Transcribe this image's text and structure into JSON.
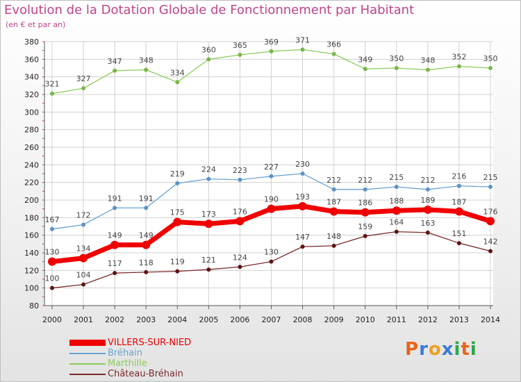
{
  "title": "Evolution de la Dotation Globale de Fonctionnement par Habitant",
  "subtitle": "(en € et par an)",
  "logo": {
    "text": "Proxiti",
    "colors": [
      "#e8641b",
      "#3a7bd5",
      "#f0a020",
      "#3a7bd5",
      "#2aa84a",
      "#e8641b",
      "#2aa84a"
    ]
  },
  "chart_data": {
    "type": "line",
    "x": [
      2000,
      2001,
      2002,
      2003,
      2004,
      2005,
      2006,
      2007,
      2008,
      2009,
      2010,
      2011,
      2012,
      2013,
      2014
    ],
    "ylim": [
      80,
      380
    ],
    "yticks": [
      80,
      100,
      120,
      140,
      160,
      180,
      200,
      220,
      240,
      260,
      280,
      300,
      320,
      340,
      360,
      380
    ],
    "grid": true,
    "legend_position": "bottom-left",
    "series": [
      {
        "name": "Marthille",
        "color": "#8ccc5a",
        "marker": "#7ab648",
        "width": 1.3,
        "radius": 3,
        "values": [
          321,
          327,
          347,
          348,
          334,
          360,
          365,
          369,
          371,
          366,
          349,
          350,
          348,
          352,
          350
        ]
      },
      {
        "name": "Bréhain",
        "color": "#6aa2d2",
        "marker": "#5b92c6",
        "width": 1.3,
        "radius": 3,
        "values": [
          167,
          172,
          191,
          191,
          219,
          224,
          223,
          227,
          230,
          212,
          212,
          215,
          212,
          216,
          215
        ]
      },
      {
        "name": "Château-Bréhain",
        "color": "#7a2a2a",
        "marker": "#5e1414",
        "width": 1.3,
        "radius": 3,
        "values": [
          100,
          104,
          117,
          118,
          119,
          121,
          124,
          130,
          147,
          148,
          159,
          164,
          163,
          151,
          142
        ]
      },
      {
        "name": "VILLERS-SUR-NIED",
        "color": "#f00000",
        "marker": "#f00000",
        "width": 7,
        "radius": 6,
        "values": [
          130,
          134,
          149,
          149,
          175,
          173,
          176,
          190,
          193,
          187,
          186,
          188,
          189,
          187,
          176
        ]
      }
    ],
    "legend": [
      {
        "name": "VILLERS-SUR-NIED",
        "color": "#f00000",
        "thick": true
      },
      {
        "name": "Bréhain",
        "color": "#6aa2d2",
        "thick": false
      },
      {
        "name": "Marthille",
        "color": "#8ccc5a",
        "thick": false
      },
      {
        "name": "Château-Bréhain",
        "color": "#7a2a2a",
        "thick": false
      }
    ]
  }
}
